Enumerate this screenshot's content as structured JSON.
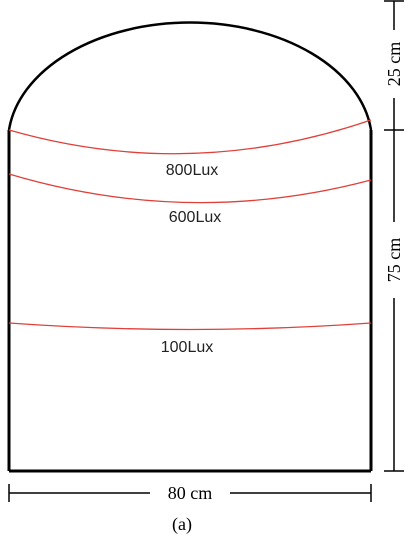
{
  "diagram": {
    "caption": "(a)",
    "dimensions": {
      "width_label": "80 cm",
      "rect_height_label": "75 cm",
      "arc_height_label": "25 cm"
    },
    "isolines": [
      {
        "label": "800Lux"
      },
      {
        "label": "600Lux"
      },
      {
        "label": "100Lux"
      }
    ],
    "colors": {
      "outline": "#000000",
      "isoline": "#e0403a"
    }
  }
}
